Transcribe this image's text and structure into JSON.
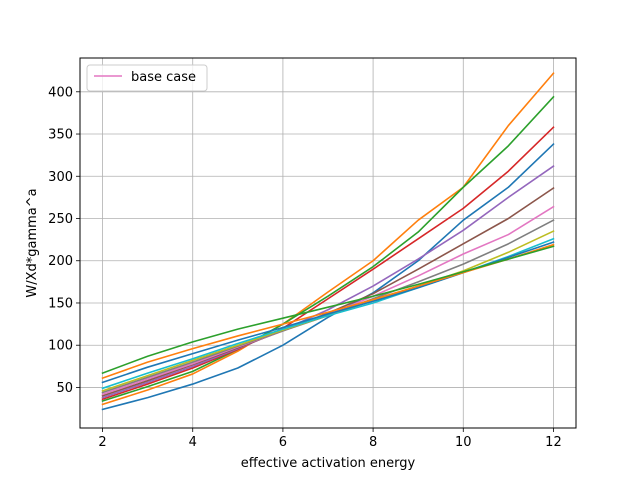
{
  "chart_data": {
    "type": "line",
    "xlabel": "effective activation energy",
    "ylabel": "W/Xd*gamma^a",
    "xlim": [
      1.5,
      12.5
    ],
    "ylim": [
      2,
      440
    ],
    "xticks": [
      2,
      4,
      6,
      8,
      10,
      12
    ],
    "yticks": [
      50,
      100,
      150,
      200,
      250,
      300,
      350,
      400
    ],
    "grid": true,
    "legend": {
      "placement": "top-left",
      "entries": [
        "base case"
      ]
    },
    "x": [
      2,
      3,
      4,
      5,
      6,
      7,
      8,
      9,
      10,
      11,
      12
    ],
    "series": [
      {
        "color": "#1f77b4",
        "values": [
          24,
          38,
          54,
          73,
          100,
          133,
          162,
          200,
          248,
          287,
          338
        ]
      },
      {
        "color": "#ff7f0e",
        "values": [
          30,
          47,
          66,
          93,
          125,
          163,
          200,
          248,
          287,
          360,
          422
        ]
      },
      {
        "color": "#2ca02c",
        "values": [
          34,
          51,
          69,
          95,
          125,
          158,
          193,
          234,
          287,
          336,
          394
        ]
      },
      {
        "color": "#d62728",
        "values": [
          36,
          54,
          73,
          95,
          120,
          155,
          190,
          226,
          262,
          306,
          358
        ]
      },
      {
        "color": "#9467bd",
        "values": [
          38,
          56,
          75,
          96,
          118,
          142,
          170,
          202,
          236,
          275,
          312
        ]
      },
      {
        "color": "#8c564b",
        "values": [
          40,
          58,
          77,
          97,
          117,
          138,
          161,
          190,
          220,
          250,
          286
        ]
      },
      {
        "color": "#e377c2",
        "values": [
          42,
          60,
          78,
          98,
          117,
          136,
          158,
          182,
          208,
          231,
          264
        ]
      },
      {
        "color": "#7f7f7f",
        "values": [
          44,
          62,
          80,
          99,
          117,
          135,
          155,
          175,
          196,
          220,
          248
        ]
      },
      {
        "color": "#bcbd22",
        "values": [
          46,
          64,
          82,
          100,
          118,
          135,
          153,
          170,
          188,
          210,
          235
        ]
      },
      {
        "color": "#17becf",
        "values": [
          49,
          67,
          84,
          102,
          119,
          135,
          150,
          168,
          186,
          205,
          226
        ]
      },
      {
        "color": "#1f77b4",
        "values": [
          56,
          74,
          90,
          106,
          121,
          137,
          152,
          168,
          186,
          204,
          222
        ]
      },
      {
        "color": "#ff7f0e",
        "values": [
          61,
          80,
          96,
          111,
          125,
          139,
          154,
          170,
          186,
          202,
          219
        ]
      },
      {
        "color": "#2ca02c",
        "values": [
          67,
          87,
          104,
          119,
          132,
          145,
          158,
          172,
          187,
          202,
          217
        ]
      }
    ],
    "legend_color": "#e377c2"
  }
}
